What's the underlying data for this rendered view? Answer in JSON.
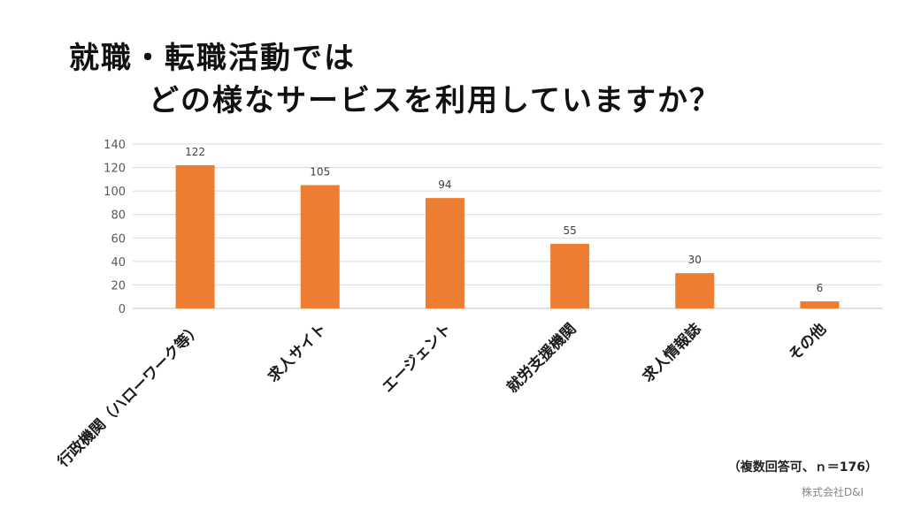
{
  "title": {
    "line1": "就職・転職活動では",
    "line2": "どの様なサービスを利用していますか？"
  },
  "note": "（複数回答可、ｎ＝176）",
  "company": "株式会社D&I",
  "colors": {
    "bar": "#ED7D31",
    "grid": "#D9D9D9",
    "axis": "#595959"
  },
  "chart_data": {
    "type": "bar",
    "categories": [
      "行政機関（ハローワーク等）",
      "求人サイト",
      "エージェント",
      "就労支援機関",
      "求人情報誌",
      "その他"
    ],
    "values": [
      122,
      105,
      94,
      55,
      30,
      6
    ],
    "ylim": [
      0,
      140
    ],
    "yticks": [
      0,
      20,
      40,
      60,
      80,
      100,
      120,
      140
    ],
    "grid": true,
    "data_labels": true
  }
}
